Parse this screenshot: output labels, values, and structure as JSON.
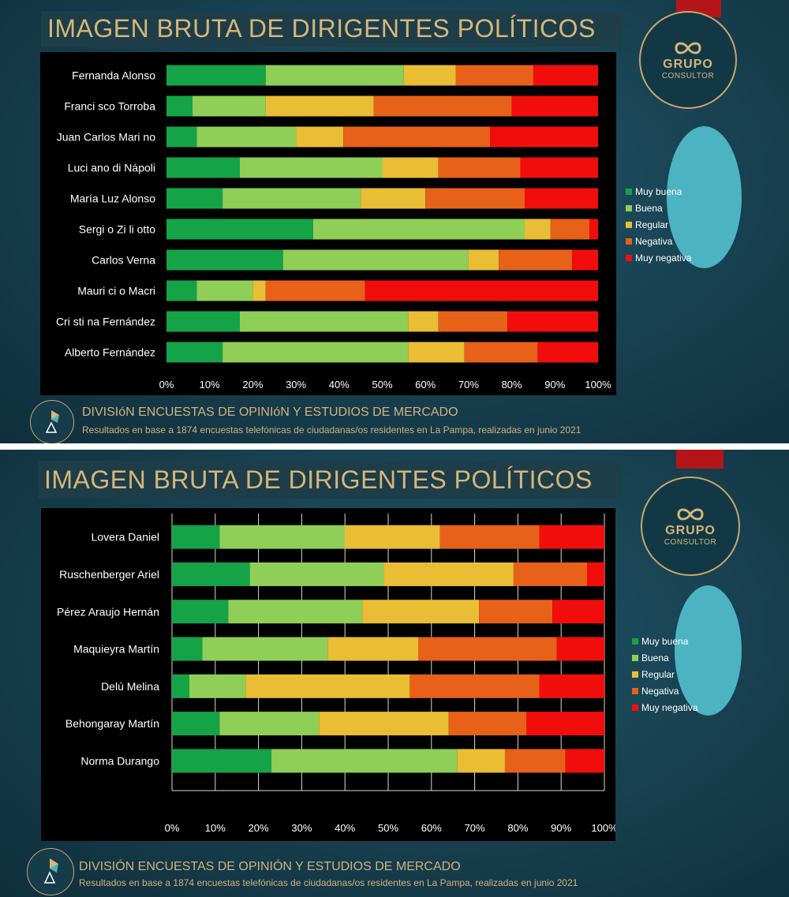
{
  "colors": {
    "muy_buena": "#15a347",
    "buena": "#8fcf57",
    "regular": "#e9bd34",
    "negativa": "#e86118",
    "muy_negativa": "#f20d0d",
    "gold": "#d7b67a"
  },
  "logo": {
    "top": "GRUPO",
    "bottom": "CONSULTOR",
    "icon": "infinity-icon"
  },
  "footer": {
    "icon": "pie-pyramid-icon",
    "sub": "Resultados en base a 1874 encuestas telefónicas de ciudadanas/os residentes en La Pampa, realizadas en junio 2021"
  },
  "chart_data": [
    {
      "type": "bar",
      "orientation": "horizontal",
      "stacked": "percent",
      "title": "IMAGEN BRUTA DE DIRIGENTES POLÍTICOS",
      "footer_title": "DIVISIóN ENCUESTAS DE OPINIóN Y ESTUDIOS DE MERCADO",
      "categories": [
        "Fernanda Alonso",
        "Franci sco Torroba",
        "Juan Carlos Mari no",
        "Luci ano di Nápoli",
        "María Luz Alonso",
        "Sergi o Zi li otto",
        "Carlos Verna",
        "Mauri ci o Macri",
        "Cri sti na Fernández",
        "Alberto Fernández"
      ],
      "series": [
        {
          "name": "Muy buena",
          "values": [
            23,
            6,
            7,
            17,
            13,
            34,
            27,
            7,
            17,
            13
          ]
        },
        {
          "name": "Buena",
          "values": [
            32,
            17,
            23,
            33,
            32,
            49,
            43,
            13,
            39,
            43
          ]
        },
        {
          "name": "Regular",
          "values": [
            12,
            25,
            11,
            13,
            15,
            6,
            7,
            3,
            7,
            13
          ]
        },
        {
          "name": "Negativa",
          "values": [
            18,
            32,
            34,
            19,
            23,
            9,
            17,
            23,
            16,
            17
          ]
        },
        {
          "name": "Muy negativa",
          "values": [
            15,
            20,
            25,
            18,
            17,
            2,
            6,
            54,
            21,
            14
          ]
        }
      ],
      "xlim": [
        0,
        100
      ],
      "xticks": [
        "0%",
        "10%",
        "20%",
        "30%",
        "40%",
        "50%",
        "60%",
        "70%",
        "80%",
        "90%",
        "100%"
      ],
      "grid": false,
      "legend": "right"
    },
    {
      "type": "bar",
      "orientation": "horizontal",
      "stacked": "percent",
      "title": "IMAGEN BRUTA DE DIRIGENTES POLÍTICOS",
      "footer_title": "DIVISIÓN ENCUESTAS DE OPINIÓN Y ESTUDIOS DE MERCADO",
      "categories": [
        "Lovera Daniel",
        "Ruschenberger Ariel",
        "Pérez Araujo Hernán",
        "Maquieyra Martín",
        "Delú Melina",
        "Behongaray Martín",
        "Norma Durango"
      ],
      "series": [
        {
          "name": "Muy buena",
          "values": [
            11,
            18,
            13,
            7,
            4,
            11,
            23
          ]
        },
        {
          "name": "Buena",
          "values": [
            29,
            31,
            31,
            29,
            13,
            23,
            43
          ]
        },
        {
          "name": "Regular",
          "values": [
            22,
            30,
            27,
            21,
            38,
            30,
            11
          ]
        },
        {
          "name": "Negativa",
          "values": [
            23,
            17,
            17,
            32,
            30,
            18,
            14
          ]
        },
        {
          "name": "Muy negativa",
          "values": [
            15,
            4,
            12,
            11,
            15,
            18,
            9
          ]
        }
      ],
      "xlim": [
        0,
        100
      ],
      "xticks": [
        "0%",
        "10%",
        "20%",
        "30%",
        "40%",
        "50%",
        "60%",
        "70%",
        "80%",
        "90%",
        "100%"
      ],
      "grid": true,
      "legend": "right"
    }
  ]
}
